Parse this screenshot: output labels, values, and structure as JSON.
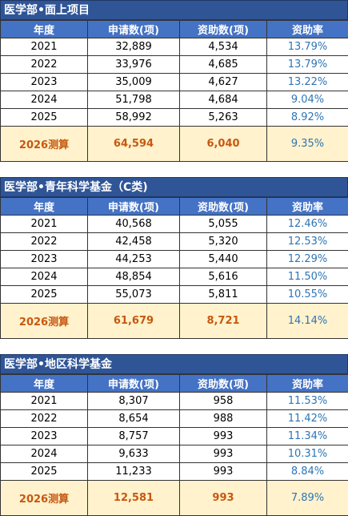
{
  "sections": [
    {
      "title": "医学部•面上项目",
      "header": [
        "年度",
        "申请数(项)",
        "资助数(项)",
        "资助率"
      ],
      "rows": [
        [
          "2021",
          "32,889",
          "4,534",
          "13.79%"
        ],
        [
          "2022",
          "33,976",
          "4,685",
          "13.79%"
        ],
        [
          "2023",
          "35,009",
          "4,627",
          "13.22%"
        ],
        [
          "2024",
          "51,798",
          "4,684",
          "9.04%"
        ],
        [
          "2025",
          "58,992",
          "5,263",
          "8.92%"
        ]
      ],
      "estimate": [
        "2026测算",
        "64,594",
        "6,040",
        "9.35%"
      ]
    },
    {
      "title": "医学部•青年科学基金（C类)",
      "header": [
        "年度",
        "申请数(项)",
        "资助数(项)",
        "资助率"
      ],
      "rows": [
        [
          "2021",
          "40,568",
          "5,055",
          "12.46%"
        ],
        [
          "2022",
          "42,458",
          "5,320",
          "12.53%"
        ],
        [
          "2023",
          "44,253",
          "5,440",
          "12.29%"
        ],
        [
          "2024",
          "48,854",
          "5,616",
          "11.50%"
        ],
        [
          "2025",
          "55,073",
          "5,811",
          "10.55%"
        ]
      ],
      "estimate": [
        "2026测算",
        "61,679",
        "8,721",
        "14.14%"
      ]
    },
    {
      "title": "医学部•地区科学基金",
      "header": [
        "年度",
        "申请数(项)",
        "资助数(项)",
        "资助率"
      ],
      "rows": [
        [
          "2021",
          "8,307",
          "958",
          "11.53%"
        ],
        [
          "2022",
          "8,654",
          "988",
          "11.42%"
        ],
        [
          "2023",
          "8,757",
          "993",
          "11.34%"
        ],
        [
          "2024",
          "9,633",
          "993",
          "10.31%"
        ],
        [
          "2025",
          "11,233",
          "993",
          "8.84%"
        ]
      ],
      "estimate": [
        "2026测算",
        "12,581",
        "993",
        "7.89%"
      ]
    }
  ]
}
